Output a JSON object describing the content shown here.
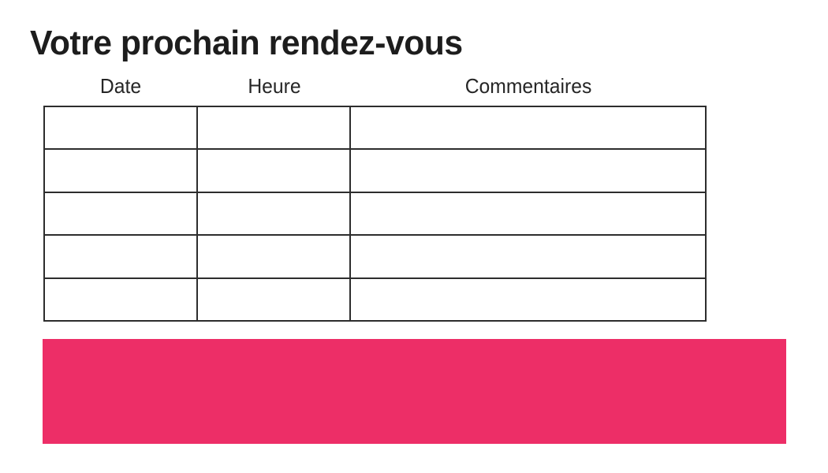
{
  "page": {
    "title": "Votre prochain rendez-vous"
  },
  "table": {
    "headers": [
      "Date",
      "Heure",
      "Commentaires"
    ],
    "rows": [
      [
        "",
        "",
        ""
      ],
      [
        "",
        "",
        ""
      ],
      [
        "",
        "",
        ""
      ],
      [
        "",
        "",
        ""
      ],
      [
        "",
        "",
        ""
      ]
    ]
  },
  "banner": {
    "color": "#ED2E67"
  },
  "colors": {
    "table_border": "#2d2d2d",
    "text": "#1d1d1d",
    "background": "#ffffff"
  }
}
